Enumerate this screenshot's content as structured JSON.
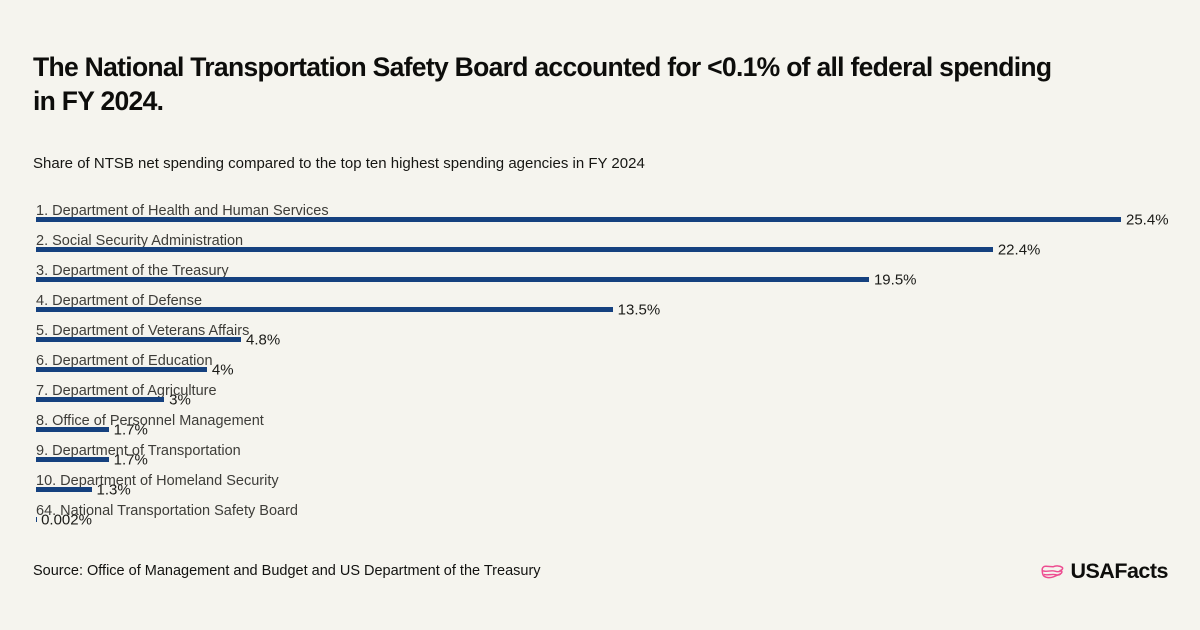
{
  "title": {
    "line1": "The National Transportation Safety Board accounted for <0.1% of all federal spending",
    "line2": "in FY 2024."
  },
  "subtitle": "Share of NTSB net spending compared to the top ten highest spending agencies in FY 2024",
  "source": "Source: Office of Management and Budget and US Department of the Treasury",
  "branding": {
    "logo_text": "USAFacts",
    "logo_icon": "usafacts-usa-map-icon"
  },
  "colors": {
    "background": "#F5F4EE",
    "bar": "#15417F",
    "category_label": "#3E3D39",
    "value_label": "#1B1B18",
    "title": "#0D0D0B",
    "logo_pink": "#ED4D91"
  },
  "chart_data": {
    "type": "bar",
    "orientation": "horizontal",
    "title": "Share of NTSB net spending compared to the top ten highest spending agencies in FY 2024",
    "categories": [
      "1. Department of Health and Human Services",
      "2. Social Security Administration",
      "3. Department of the Treasury",
      "4. Department of Defense",
      "5. Department of Veterans Affairs",
      "6. Department of Education",
      "7. Department of Agriculture",
      "8. Office of Personnel Management",
      "9. Department of Transportation",
      "10. Department of Homeland Security",
      "64. National Transportation Safety Board"
    ],
    "values": [
      25.4,
      22.4,
      19.5,
      13.5,
      4.8,
      4,
      3,
      1.7,
      1.7,
      1.3,
      0.002
    ],
    "value_labels": [
      "25.4%",
      "22.4%",
      "19.5%",
      "13.5%",
      "4.8%",
      "4%",
      "3%",
      "1.7%",
      "1.7%",
      "1.3%",
      "0.002%"
    ],
    "unit": "%",
    "xlim": [
      0,
      25.4
    ],
    "grid": false,
    "legend": false,
    "bar_color": "#15417F"
  }
}
